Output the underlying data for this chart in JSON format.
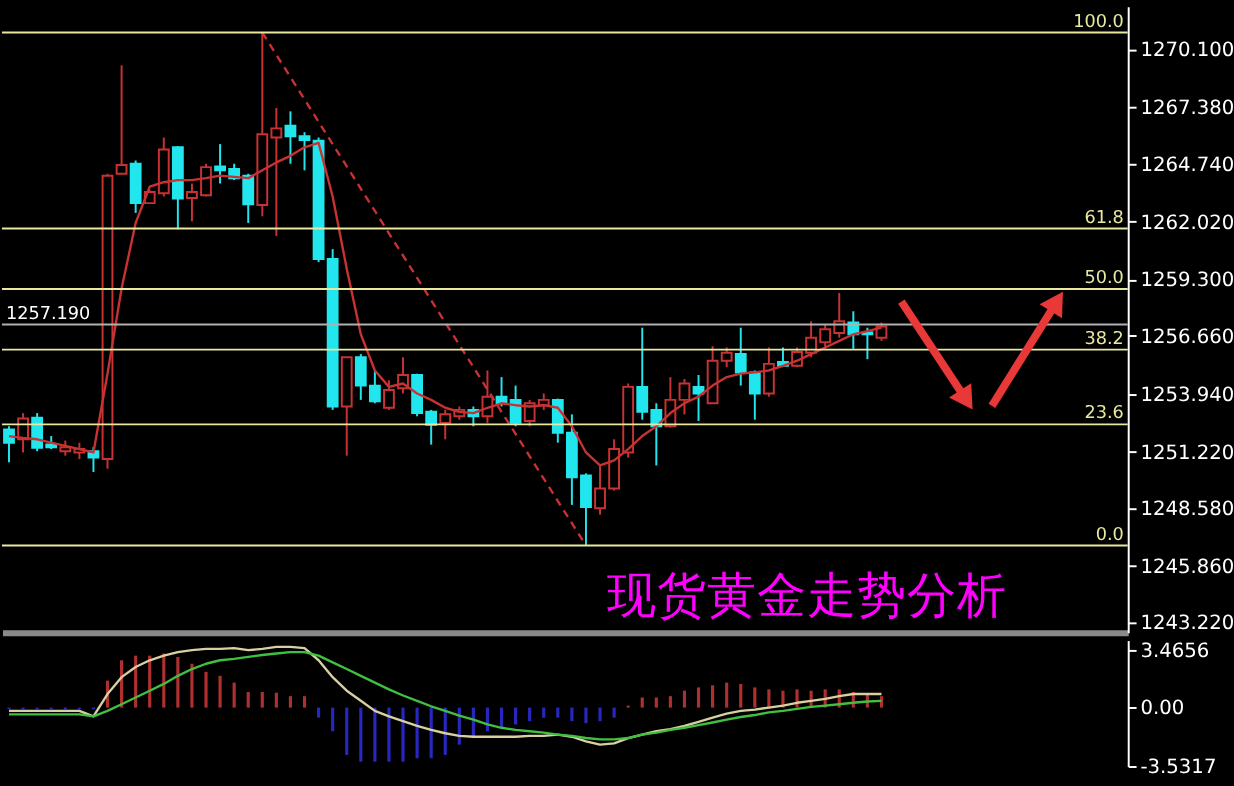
{
  "chart_data": [
    {
      "type": "candlestick",
      "categories": [
        null,
        null,
        null,
        null,
        null,
        null,
        null,
        null,
        null,
        null,
        null,
        null,
        null,
        null,
        null,
        null,
        null,
        null,
        null,
        null,
        null,
        null,
        null,
        null,
        null,
        null,
        null,
        null,
        null,
        null,
        null,
        null,
        null,
        null,
        null,
        null,
        null,
        null,
        null,
        null,
        null,
        null,
        null,
        null,
        null,
        null,
        null,
        null,
        null,
        null,
        null,
        null,
        null,
        null,
        null,
        null,
        null,
        null,
        null,
        null,
        null,
        null,
        null,
        null,
        null,
        null,
        null,
        null,
        null,
        null,
        null,
        null,
        null,
        null,
        null,
        null,
        null,
        null,
        null,
        null
      ],
      "ohlc": [
        [
          1252.26,
          1252.41,
          1250.72,
          1251.64
        ],
        [
          1251.8,
          1253.03,
          1251.18,
          1252.78
        ],
        [
          1252.81,
          1253.03,
          1251.24,
          1251.4
        ],
        [
          1251.55,
          1251.95,
          1251.34,
          1251.43
        ],
        [
          1251.24,
          1251.74,
          1251.03,
          1251.43
        ],
        [
          1251.18,
          1251.64,
          1250.87,
          1251.34
        ],
        [
          1251.24,
          1251.43,
          1250.26,
          1250.94
        ],
        [
          1250.87,
          1264.27,
          1250.41,
          1264.18
        ],
        [
          1264.27,
          1269.36,
          1264.27,
          1264.68
        ],
        [
          1264.74,
          1264.89,
          1262.43,
          1262.89
        ],
        [
          1262.89,
          1263.5,
          1262.89,
          1263.41
        ],
        [
          1263.35,
          1265.97,
          1263.2,
          1265.41
        ],
        [
          1265.51,
          1265.57,
          1261.66,
          1263.1
        ],
        [
          1263.13,
          1263.81,
          1262.03,
          1263.41
        ],
        [
          1263.26,
          1264.74,
          1263.2,
          1264.58
        ],
        [
          1264.61,
          1265.66,
          1263.81,
          1264.43
        ],
        [
          1264.49,
          1264.74,
          1263.97,
          1264.06
        ],
        [
          1264.18,
          1264.27,
          1261.96,
          1262.83
        ],
        [
          1262.8,
          1270.9,
          1262.27,
          1266.12
        ],
        [
          1265.97,
          1267.36,
          1261.35,
          1266.4
        ],
        [
          1266.52,
          1267.2,
          1264.74,
          1266.03
        ],
        [
          1266.03,
          1266.22,
          1264.43,
          1265.85
        ],
        [
          1265.82,
          1265.97,
          1260.12,
          1260.27
        ],
        [
          1260.27,
          1260.73,
          1253.18,
          1253.34
        ],
        [
          1253.34,
          1255.65,
          1251.03,
          1255.65
        ],
        [
          1255.65,
          1255.8,
          1253.65,
          1254.32
        ],
        [
          1254.32,
          1255.03,
          1253.49,
          1253.58
        ],
        [
          1253.28,
          1254.57,
          1253.18,
          1254.11
        ],
        [
          1254.2,
          1255.65,
          1253.95,
          1254.82
        ],
        [
          1254.82,
          1254.88,
          1252.88,
          1253.03
        ],
        [
          1253.09,
          1253.18,
          1251.55,
          1252.48
        ],
        [
          1252.57,
          1253.18,
          1251.8,
          1252.97
        ],
        [
          1252.88,
          1253.34,
          1252.72,
          1253.18
        ],
        [
          1253.18,
          1253.34,
          1252.41,
          1252.88
        ],
        [
          1252.88,
          1255.03,
          1252.57,
          1253.8
        ],
        [
          1253.8,
          1254.72,
          1253.34,
          1253.49
        ],
        [
          1253.65,
          1254.32,
          1252.41,
          1252.57
        ],
        [
          1252.66,
          1253.65,
          1252.41,
          1253.49
        ],
        [
          1253.4,
          1253.95,
          1253.18,
          1253.65
        ],
        [
          1253.65,
          1253.71,
          1251.64,
          1252.11
        ],
        [
          1252.11,
          1252.97,
          1248.72,
          1250.01
        ],
        [
          1250.1,
          1250.2,
          1246.81,
          1248.62
        ],
        [
          1248.56,
          1250.57,
          1248.26,
          1249.49
        ],
        [
          1249.49,
          1251.8,
          1249.39,
          1251.34
        ],
        [
          1251.18,
          1254.42,
          1250.94,
          1254.26
        ],
        [
          1254.26,
          1257.04,
          1252.72,
          1253.09
        ],
        [
          1253.18,
          1253.49,
          1250.57,
          1252.41
        ],
        [
          1252.41,
          1254.72,
          1252.35,
          1253.65
        ],
        [
          1253.65,
          1254.63,
          1252.97,
          1254.42
        ],
        [
          1254.26,
          1254.82,
          1252.66,
          1253.95
        ],
        [
          1253.49,
          1256.17,
          1253.49,
          1255.49
        ],
        [
          1255.49,
          1256.11,
          1255.19,
          1255.86
        ],
        [
          1255.8,
          1257.04,
          1254.32,
          1254.94
        ],
        [
          1254.94,
          1255.03,
          1252.72,
          1253.95
        ],
        [
          1253.95,
          1256.11,
          1253.8,
          1255.34
        ],
        [
          1255.43,
          1256.11,
          1255.19,
          1255.25
        ],
        [
          1255.25,
          1256.11,
          1255.19,
          1255.9
        ],
        [
          1255.86,
          1257.34,
          1255.65,
          1256.57
        ],
        [
          1256.36,
          1257.19,
          1256.05,
          1256.97
        ],
        [
          1256.79,
          1258.67,
          1256.57,
          1257.34
        ],
        [
          1257.28,
          1257.81,
          1256.05,
          1256.73
        ],
        [
          1256.82,
          1257.04,
          1255.56,
          1256.73
        ],
        [
          1256.57,
          1257.28,
          1256.42,
          1257.1
        ],
        null,
        null,
        null,
        null,
        null,
        null,
        null,
        null,
        null,
        null,
        null,
        null,
        null,
        null,
        null,
        null,
        null
      ],
      "colors": [
        "#22e6ee",
        "#c83232",
        "#22e6ee",
        "#22e6ee",
        "#c83232",
        "#c83232",
        "#22e6ee",
        "#c83232",
        "#c83232",
        "#22e6ee",
        "#c83232",
        "#c83232",
        "#22e6ee",
        "#c83232",
        "#c83232",
        "#22e6ee",
        "#22e6ee",
        "#22e6ee",
        "#c83232",
        "#c83232",
        "#22e6ee",
        "#22e6ee",
        "#22e6ee",
        "#22e6ee",
        "#c83232",
        "#22e6ee",
        "#22e6ee",
        "#c83232",
        "#c83232",
        "#22e6ee",
        "#22e6ee",
        "#c83232",
        "#c83232",
        "#22e6ee",
        "#c83232",
        "#22e6ee",
        "#22e6ee",
        "#c83232",
        "#c83232",
        "#22e6ee",
        "#22e6ee",
        "#22e6ee",
        "#c83232",
        "#c83232",
        "#c83232",
        "#22e6ee",
        "#22e6ee",
        "#c83232",
        "#c83232",
        "#22e6ee",
        "#c83232",
        "#c83232",
        "#22e6ee",
        "#22e6ee",
        "#c83232",
        "#22e6ee",
        "#c83232",
        "#c83232",
        "#c83232",
        "#c83232",
        "#22e6ee",
        "#22e6ee",
        "#c83232",
        null,
        null,
        null,
        null,
        null,
        null,
        null,
        null,
        null,
        null,
        null,
        null,
        null,
        null,
        null,
        null,
        null
      ],
      "series": [
        {
          "type": "line",
          "color": "#c83232",
          "line_style": "solid",
          "values": [
            1251.95,
            1251.86,
            1251.8,
            1251.64,
            1251.49,
            1251.34,
            1251.18,
            1254.88,
            1258.88,
            1261.96,
            1263.66,
            1263.87,
            1263.97,
            1263.97,
            1264.06,
            1264.18,
            1264.12,
            1264.06,
            1264.43,
            1264.8,
            1265.11,
            1265.51,
            1265.72,
            1263.2,
            1259.81,
            1256.73,
            1255.03,
            1254.26,
            1254.42,
            1253.95,
            1253.65,
            1253.28,
            1253.09,
            1253.03,
            1253.28,
            1253.49,
            1253.4,
            1253.34,
            1253.4,
            1253.28,
            1252.41,
            1251.18,
            1250.57,
            1250.81,
            1251.34,
            1251.95,
            1252.41,
            1253.03,
            1253.49,
            1253.8,
            1254.32,
            1254.72,
            1254.88,
            1254.94,
            1255.03,
            1255.25,
            1255.49,
            1255.8,
            1256.11,
            1256.42,
            1256.73,
            1256.88,
            1257.04,
            null,
            null,
            null,
            null,
            null,
            null,
            null,
            null,
            null,
            null,
            null,
            null,
            null,
            null,
            null,
            null,
            null
          ]
        },
        {
          "type": "line",
          "color": "#c83232",
          "line_style": "dashed",
          "values": [
            null,
            null,
            null,
            null,
            null,
            null,
            null,
            null,
            null,
            null,
            null,
            null,
            null,
            null,
            null,
            null,
            null,
            null,
            1270.9,
            1269.85,
            1268.81,
            1267.76,
            1266.71,
            1265.66,
            1264.62,
            1263.57,
            1262.52,
            1261.47,
            1260.43,
            1259.38,
            1258.33,
            1257.28,
            1256.24,
            1255.19,
            1254.14,
            1253.09,
            1252.05,
            1251.0,
            1249.95,
            1248.9,
            1247.86,
            1246.81,
            null,
            null,
            null,
            null,
            null,
            null,
            null,
            null,
            null,
            null,
            null,
            null,
            null,
            null,
            null,
            null,
            null,
            null,
            null,
            null,
            null,
            null,
            null,
            null,
            null,
            null,
            null,
            null,
            null,
            null,
            null,
            null,
            null,
            null,
            null,
            null,
            null,
            null
          ]
        }
      ],
      "ref_lines": [
        {
          "axis": "y",
          "value": 1270.9,
          "color": "#e8e8a0"
        },
        {
          "axis": "y",
          "value": 1261.7,
          "color": "#e8e8a0"
        },
        {
          "axis": "y",
          "value": 1258.86,
          "color": "#e8e8a0"
        },
        {
          "axis": "y",
          "value": 1257.19,
          "label": "1257.190",
          "color": "#b0b0b0"
        },
        {
          "axis": "y",
          "value": 1256.01,
          "color": "#e8e8a0"
        },
        {
          "axis": "y",
          "value": 1252.5,
          "color": "#e8e8a0"
        },
        {
          "axis": "y",
          "value": 1246.81,
          "color": "#e8e8a0"
        }
      ],
      "ylim": [
        1242.74,
        1272.13
      ],
      "yticks": [
        {
          "value": 1270.1,
          "label": "1270.100"
        },
        {
          "value": 1267.38,
          "label": "1267.380"
        },
        {
          "value": 1264.74,
          "label": "1264.740"
        },
        {
          "value": 1262.02,
          "label": "1262.020"
        },
        {
          "value": 1259.3,
          "label": "1259.300"
        },
        {
          "value": 1256.66,
          "label": "1256.660"
        },
        {
          "value": 1253.94,
          "label": "1253.940"
        },
        {
          "value": 1251.22,
          "label": "1251.220"
        },
        {
          "value": 1248.58,
          "label": "1248.580"
        },
        {
          "value": 1245.86,
          "label": "1245.860"
        },
        {
          "value": 1243.22,
          "label": "1243.220"
        }
      ],
      "tick_labels": "y",
      "annotations": [
        "现货黄金走势分析",
        {
          "text": "100.0",
          "y": 1270.9
        },
        {
          "text": "61.8",
          "y": 1261.7
        },
        {
          "text": "50.0",
          "y": 1258.86
        },
        {
          "text": "38.2",
          "y": 1256.01
        },
        {
          "text": "23.6",
          "y": 1252.5
        },
        {
          "text": "0.0",
          "y": 1246.81
        }
      ]
    },
    {
      "type": "bar",
      "categories": [
        null,
        null,
        null,
        null,
        null,
        null,
        null,
        null,
        null,
        null,
        null,
        null,
        null,
        null,
        null,
        null,
        null,
        null,
        null,
        null,
        null,
        null,
        null,
        null,
        null,
        null,
        null,
        null,
        null,
        null,
        null,
        null,
        null,
        null,
        null,
        null,
        null,
        null,
        null,
        null,
        null,
        null,
        null,
        null,
        null,
        null,
        null,
        null,
        null,
        null,
        null,
        null,
        null,
        null,
        null,
        null,
        null,
        null,
        null,
        null,
        null,
        null,
        null,
        null,
        null,
        null,
        null,
        null,
        null,
        null,
        null,
        null,
        null,
        null,
        null,
        null,
        null,
        null,
        null,
        null
      ],
      "series": [
        {
          "type": "bar",
          "color": "#b03030",
          "values": [
            null,
            null,
            null,
            null,
            null,
            null,
            null,
            1.63,
            2.86,
            3.14,
            3.14,
            3.27,
            3.06,
            2.65,
            2.16,
            1.92,
            1.51,
            0.94,
            0.94,
            0.9,
            0.69,
            0.69,
            null,
            null,
            null,
            null,
            null,
            null,
            null,
            null,
            null,
            null,
            null,
            null,
            null,
            null,
            null,
            null,
            null,
            null,
            null,
            null,
            null,
            null,
            0.12,
            0.61,
            0.61,
            0.69,
            1.02,
            1.22,
            1.35,
            1.51,
            1.43,
            1.22,
            1.1,
            1.02,
            1.1,
            1.02,
            1.1,
            1.1,
            0.94,
            0.82,
            0.69,
            null,
            null,
            null,
            null,
            null,
            null,
            null,
            null,
            null,
            null,
            null,
            null,
            null,
            null,
            null,
            null,
            null
          ]
        },
        {
          "type": "bar",
          "color": "#2828c0",
          "values": [
            -0.1,
            -0.1,
            -0.1,
            -0.1,
            -0.1,
            -0.1,
            -0.1,
            null,
            null,
            null,
            null,
            null,
            null,
            null,
            null,
            null,
            null,
            null,
            null,
            null,
            null,
            null,
            -0.61,
            -1.43,
            -2.86,
            -3.27,
            -3.27,
            -3.27,
            -3.27,
            -3.06,
            -3.06,
            -2.86,
            -2.24,
            -1.84,
            -1.43,
            -1.22,
            -1.02,
            -0.82,
            -0.61,
            -0.61,
            -0.82,
            -0.94,
            -0.82,
            -0.61,
            null,
            null,
            null,
            null,
            null,
            null,
            null,
            null,
            null,
            null,
            null,
            null,
            null,
            null,
            null,
            null,
            null,
            null,
            null,
            null,
            null,
            null,
            null,
            null,
            null,
            null,
            null,
            null,
            null,
            null,
            null,
            null,
            null,
            null,
            null,
            null
          ]
        },
        {
          "type": "line",
          "color": "#d8d0a0",
          "values": [
            -0.2,
            -0.2,
            -0.2,
            -0.2,
            -0.2,
            -0.2,
            -0.53,
            0.82,
            1.84,
            2.45,
            2.86,
            3.14,
            3.35,
            3.47,
            3.55,
            3.55,
            3.59,
            3.47,
            3.55,
            3.67,
            3.67,
            3.59,
            2.86,
            1.84,
            1.02,
            0.41,
            -0.2,
            -0.53,
            -0.82,
            -1.1,
            -1.35,
            -1.55,
            -1.71,
            -1.76,
            -1.76,
            -1.76,
            -1.76,
            -1.71,
            -1.71,
            -1.63,
            -1.76,
            -2.04,
            -2.24,
            -2.16,
            -1.84,
            -1.63,
            -1.43,
            -1.31,
            -1.1,
            -0.86,
            -0.61,
            -0.37,
            -0.2,
            -0.12,
            0.0,
            0.12,
            0.29,
            0.41,
            0.53,
            0.69,
            0.82,
            0.82,
            0.82,
            null,
            null,
            null,
            null,
            null,
            null,
            null,
            null,
            null,
            null,
            null,
            null,
            null,
            null,
            null,
            null,
            null
          ]
        },
        {
          "type": "line",
          "color": "#40c040",
          "values": [
            -0.41,
            -0.41,
            -0.41,
            -0.41,
            -0.41,
            -0.41,
            -0.53,
            -0.2,
            0.2,
            0.61,
            1.02,
            1.43,
            1.92,
            2.33,
            2.65,
            2.86,
            2.94,
            3.06,
            3.18,
            3.27,
            3.35,
            3.35,
            3.14,
            2.73,
            2.33,
            1.92,
            1.51,
            1.1,
            0.73,
            0.41,
            0.08,
            -0.2,
            -0.49,
            -0.73,
            -1.02,
            -1.22,
            -1.35,
            -1.43,
            -1.51,
            -1.63,
            -1.71,
            -1.84,
            -1.92,
            -1.92,
            -1.84,
            -1.63,
            -1.51,
            -1.35,
            -1.22,
            -1.06,
            -0.9,
            -0.73,
            -0.57,
            -0.45,
            -0.29,
            -0.2,
            -0.08,
            0.04,
            0.12,
            0.2,
            0.29,
            0.37,
            0.41,
            null,
            null,
            null,
            null,
            null,
            null,
            null,
            null,
            null,
            null,
            null,
            null,
            null,
            null,
            null,
            null,
            null
          ]
        }
      ],
      "ylim": [
        -3.5317,
        4.08
      ],
      "yticks": [
        3.4656,
        {
          "value": 0,
          "label": "0.00"
        },
        -3.5317
      ],
      "tick_labels": "y"
    }
  ]
}
